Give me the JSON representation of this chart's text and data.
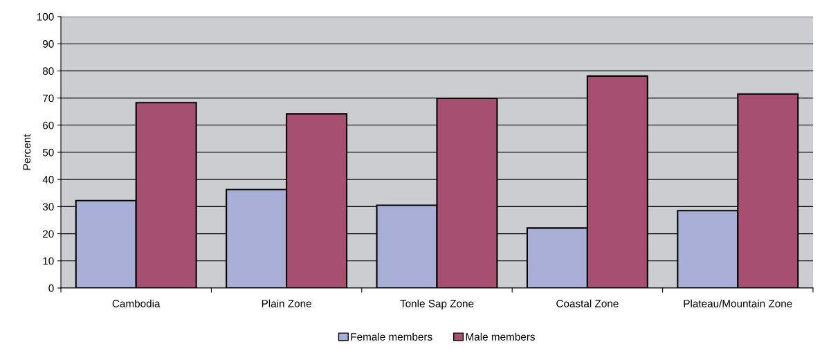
{
  "chart_data": {
    "type": "bar",
    "ylabel": "Percent",
    "categories": [
      "Cambodia",
      "Plain Zone",
      "Tonle Sap Zone",
      "Coastal Zone",
      "Plateau/Mountain Zone"
    ],
    "series": [
      {
        "name": "Female members",
        "color": "#a8aed6",
        "values": [
          32.2,
          36.3,
          30.5,
          22.1,
          28.5
        ]
      },
      {
        "name": "Male members",
        "color": "#a64f70",
        "values": [
          68.3,
          64.2,
          69.9,
          78.1,
          71.5
        ]
      }
    ],
    "ylim": [
      0,
      100
    ],
    "yticks": [
      0,
      10,
      20,
      30,
      40,
      50,
      60,
      70,
      80,
      90,
      100
    ],
    "grid": "y",
    "legend": "bottom"
  }
}
